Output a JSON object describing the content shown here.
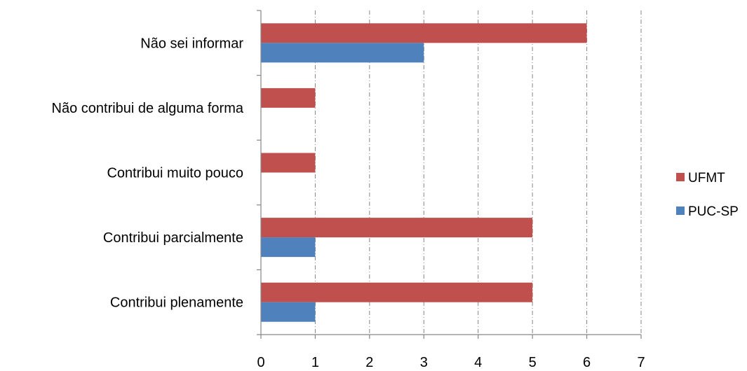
{
  "chart_data": {
    "type": "bar",
    "orientation": "horizontal",
    "categories": [
      "Contribui plenamente",
      "Contribui parcialmente",
      "Contribui muito pouco",
      "Não contribui de alguma forma",
      "Não sei informar"
    ],
    "series": [
      {
        "name": "UFMT",
        "color": "#C0504D",
        "values": [
          5,
          5,
          1,
          1,
          6
        ]
      },
      {
        "name": "PUC-SP",
        "color": "#4F81BD",
        "values": [
          1,
          1,
          0,
          0,
          3
        ]
      }
    ],
    "xlim": [
      0,
      7
    ],
    "xticks": [
      "0",
      "1",
      "2",
      "3",
      "4",
      "5",
      "6",
      "7"
    ],
    "grid": "vertical dashed",
    "legend_position": "right",
    "title": "",
    "xlabel": "",
    "ylabel": ""
  }
}
